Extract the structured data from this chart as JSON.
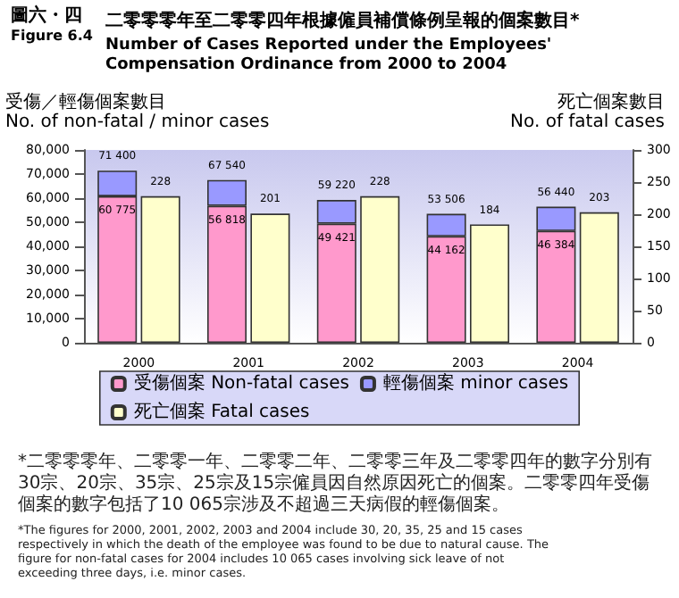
{
  "chart_data": {
    "type": "bar",
    "title": "二零零零年至二零零四年根據僱員補償條例呈報的個案數目*",
    "subtitle": "Number of Cases Reported under the Employees' Compensation Ordinance from 2000 to 2004",
    "ylabel": "受傷／輕傷個案數目\nNo. of non-fatal / minor cases",
    "y2label": "死亡個案數目\nNo. of fatal cases",
    "categories": [
      "2000",
      "2001",
      "2002",
      "2003",
      "2004"
    ],
    "stacked": true,
    "series": [
      {
        "name": "受傷個案 Non-fatal cases",
        "color": "#ff99cc",
        "values": [
          60775,
          56818,
          49421,
          44162,
          46384
        ],
        "value_labels": [
          "60 775",
          "56 818",
          "49 421",
          "44 162",
          "46 384"
        ]
      },
      {
        "name": "輕傷個案 minor cases",
        "color": "#9999ff",
        "values": [
          10625,
          10722,
          9799,
          9344,
          10056
        ]
      },
      {
        "name": "死亡個案 Fatal cases",
        "color": "#ffffcc",
        "axis": "y2",
        "values": [
          228,
          201,
          228,
          184,
          203
        ],
        "value_labels": [
          "228",
          "201",
          "228",
          "184",
          "203"
        ]
      }
    ],
    "totals": [
      "71 400",
      "67 540",
      "59 220",
      "53 506",
      "56 440"
    ],
    "ylim": [
      0,
      80000
    ],
    "yticks": [
      {
        "value": 0,
        "label": "0"
      },
      {
        "value": 10000,
        "label": "10,000"
      },
      {
        "value": 20000,
        "label": "20,000"
      },
      {
        "value": 30000,
        "label": "30,000"
      },
      {
        "value": 40000,
        "label": "40,000"
      },
      {
        "value": 50000,
        "label": "50,000"
      },
      {
        "value": 60000,
        "label": "60,000"
      },
      {
        "value": 70000,
        "label": "70,000"
      },
      {
        "value": 80000,
        "label": "80,000"
      }
    ],
    "y2lim": [
      0,
      300
    ],
    "y2ticks": [
      0,
      50,
      100,
      150,
      200,
      250,
      300
    ],
    "grid": false,
    "legend": "bottom",
    "annotations": [
      "圖六・四",
      "Figure 6.4",
      "*二零零零年、二零零一年、二零零二年、二零零三年及二零零四年的數字分別有30宗、20宗、35宗、25宗及15宗僱員因自然原因死亡的個案。二零零四年受傷個案的數字包括了10 065宗涉及不超過三天病假的輕傷個案。",
      "*The figures for 2000, 2001, 2002, 2003 and 2004 include 30, 20, 35, 25 and 15 cases respectively in which the death of the employee was found to be due to natural cause. The figure for non-fatal cases for 2004 includes 10 065 cases involving sick leave of not exceeding three days, i.e. minor cases."
    ]
  }
}
